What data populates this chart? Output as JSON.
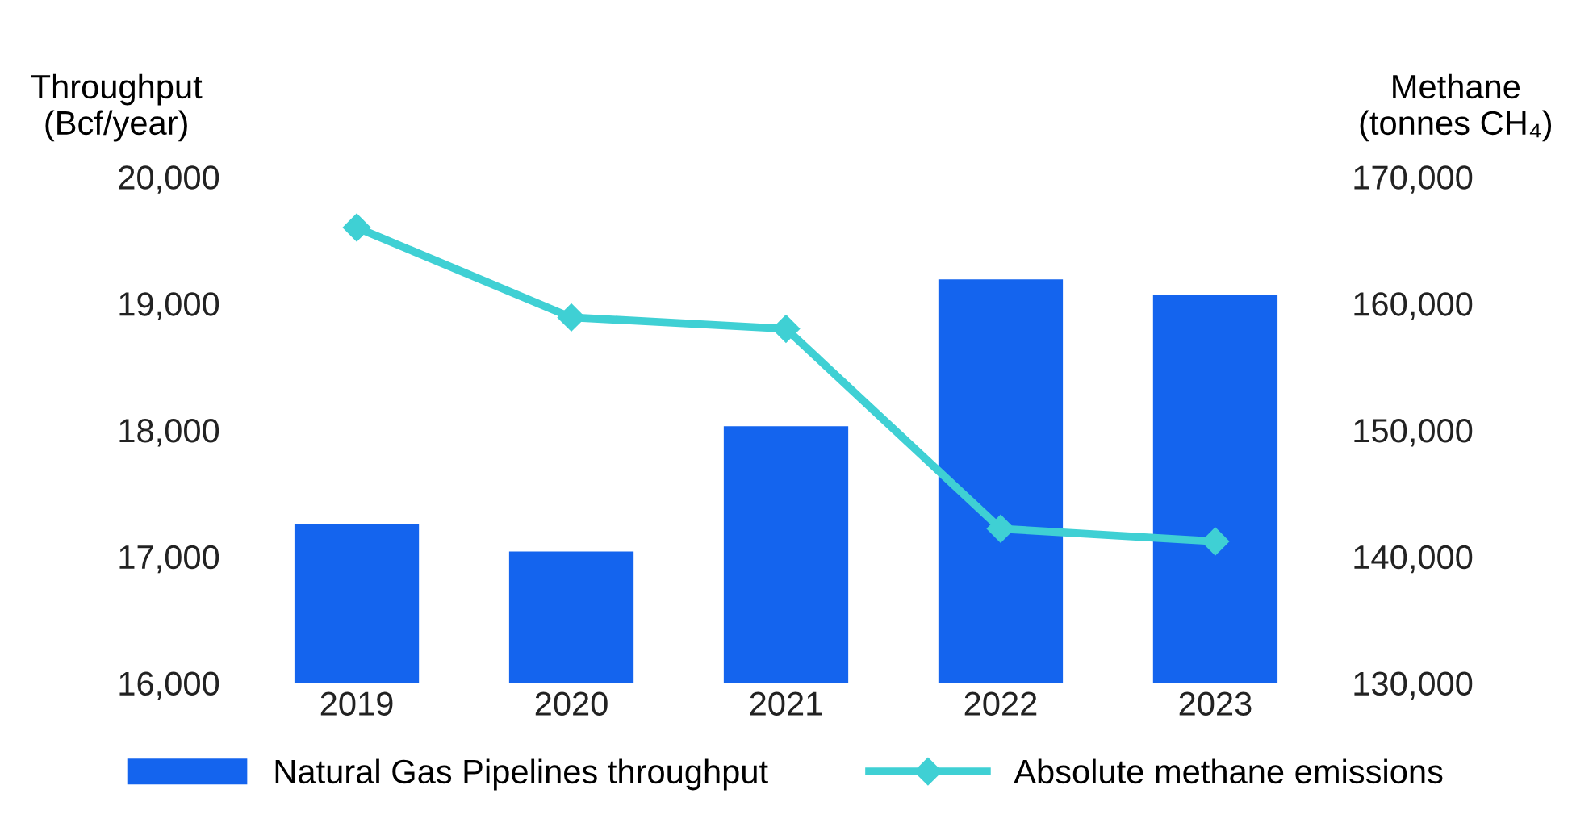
{
  "chart_data": {
    "type": "bar",
    "ylabel": "Throughput\n(Bcf/year)",
    "y2label": "Methane\n(tonnes CH₄)",
    "categories": [
      "2019",
      "2020",
      "2021",
      "2022",
      "2023"
    ],
    "series": [
      {
        "name": "Natural Gas Pipelines throughput",
        "color": "#1464ee",
        "values": [
          17260,
          17040,
          18030,
          19190,
          19070
        ]
      },
      {
        "name": "Absolute methane emissions",
        "type": "line",
        "axis": "y2",
        "color": "#3fd0d4",
        "marker": "diamond",
        "values": [
          166000,
          158900,
          158000,
          142200,
          141200
        ]
      }
    ],
    "ylim": [
      16000,
      20000
    ],
    "yticks": [
      {
        "value": 16000,
        "label": "16,000"
      },
      {
        "value": 17000,
        "label": "17,000"
      },
      {
        "value": 18000,
        "label": "18,000"
      },
      {
        "value": 19000,
        "label": "19,000"
      },
      {
        "value": 20000,
        "label": "20,000"
      }
    ],
    "y2lim": [
      130000,
      170000
    ],
    "y2ticks": [
      {
        "value": 130000,
        "label": "130,000"
      },
      {
        "value": 140000,
        "label": "140,000"
      },
      {
        "value": 150000,
        "label": "150,000"
      },
      {
        "value": 160000,
        "label": "160,000"
      },
      {
        "value": 170000,
        "label": "170,000"
      }
    ],
    "grid": false,
    "legend": "bottom"
  }
}
